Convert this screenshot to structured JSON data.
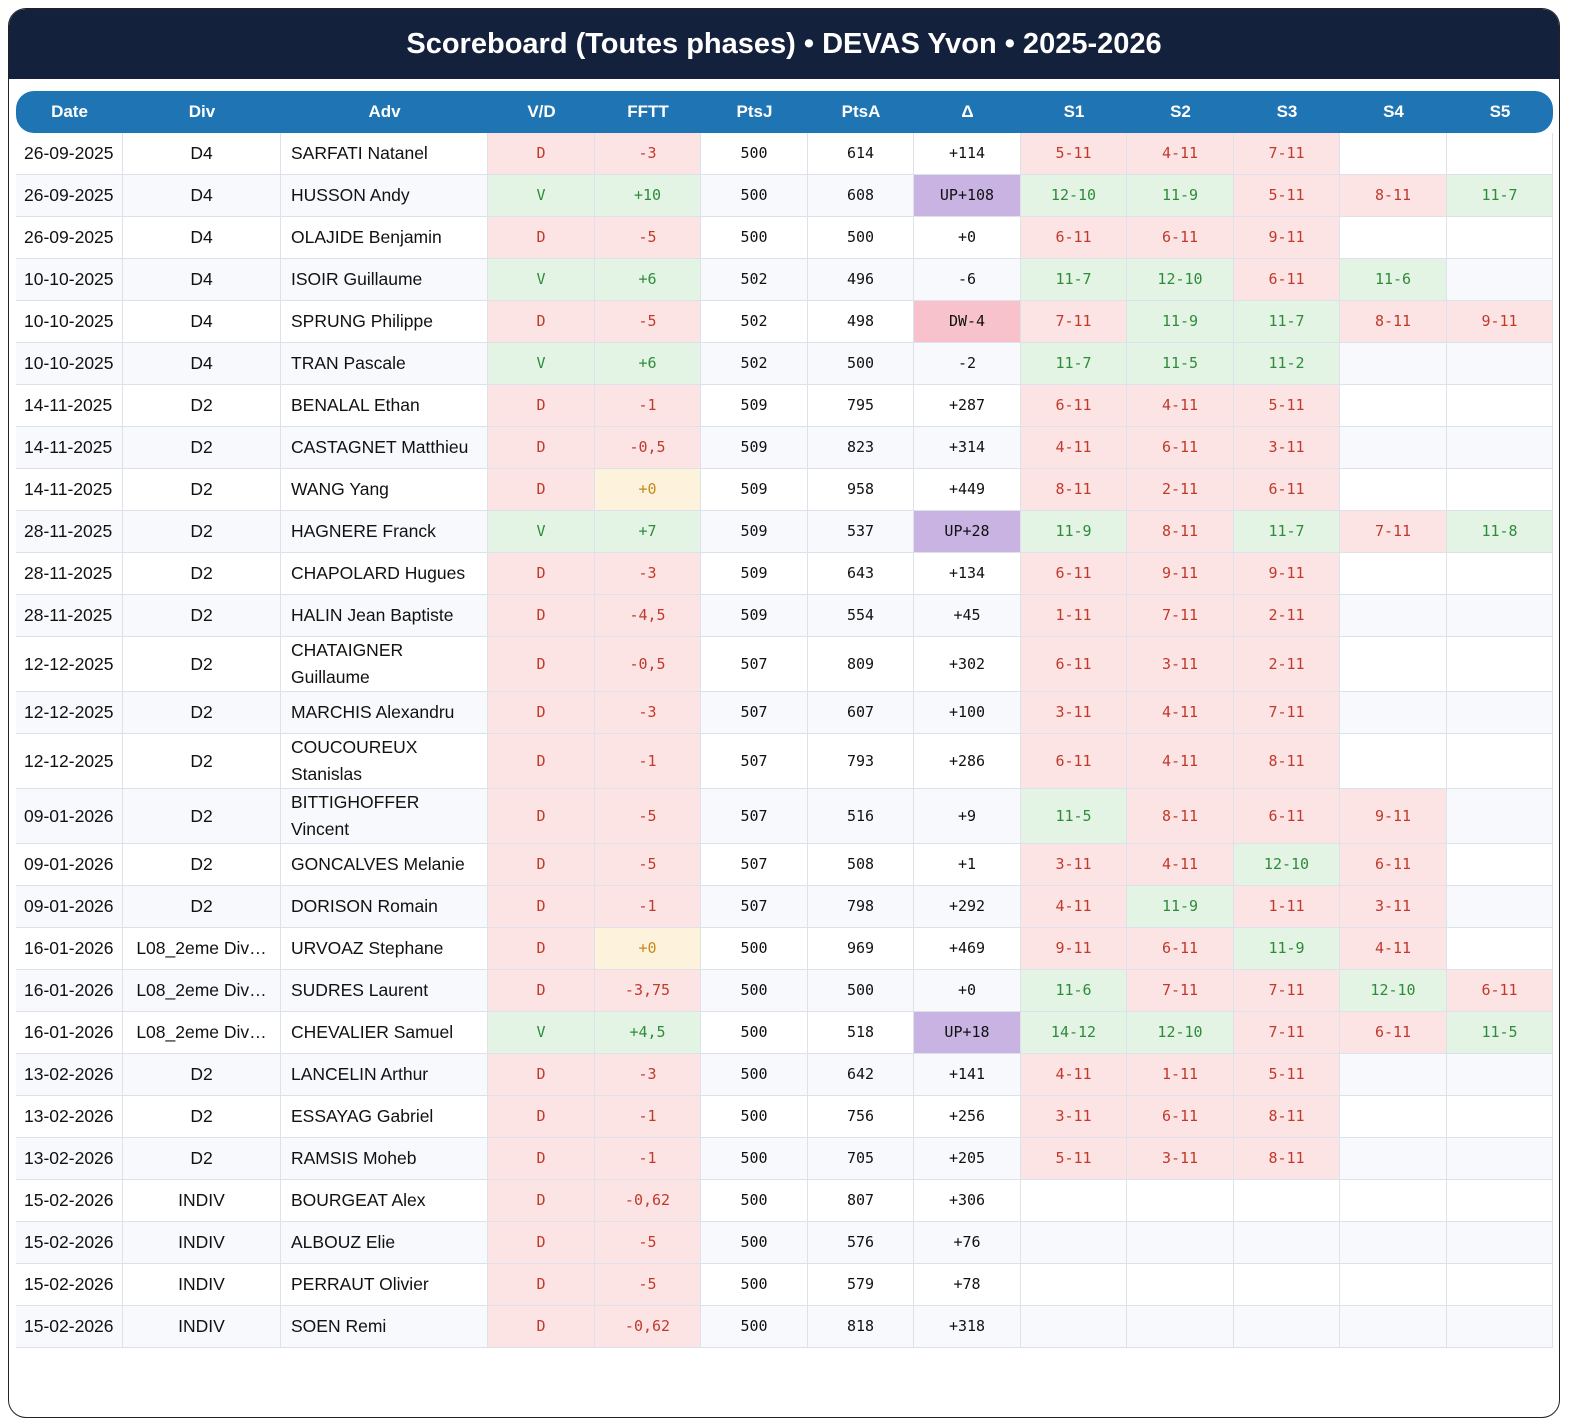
{
  "header": {
    "title": "Scoreboard (Toutes phases) • DEVAS Yvon • 2025-2026"
  },
  "table": {
    "columns": [
      "Date",
      "Div",
      "Adv",
      "V/D",
      "FFTT",
      "PtsJ",
      "PtsA",
      "Δ",
      "S1",
      "S2",
      "S3",
      "S4",
      "S5"
    ],
    "rows": [
      [
        "26-09-2025",
        "D4",
        "SARFATI Natanel",
        "D",
        "-3",
        "500",
        "614",
        "+114",
        "5-11",
        "4-11",
        "7-11"
      ],
      [
        "26-09-2025",
        "D4",
        "HUSSON Andy",
        "V",
        "+10",
        "500",
        "608",
        "UP+108",
        "12-10",
        "11-9",
        "5-11",
        "8-11",
        "11-7"
      ],
      [
        "26-09-2025",
        "D4",
        "OLAJIDE Benjamin",
        "D",
        "-5",
        "500",
        "500",
        "+0",
        "6-11",
        "6-11",
        "9-11"
      ],
      [
        "10-10-2025",
        "D4",
        "ISOIR Guillaume",
        "V",
        "+6",
        "502",
        "496",
        "-6",
        "11-7",
        "12-10",
        "6-11",
        "11-6"
      ],
      [
        "10-10-2025",
        "D4",
        "SPRUNG Philippe",
        "D",
        "-5",
        "502",
        "498",
        "DW-4",
        "7-11",
        "11-9",
        "11-7",
        "8-11",
        "9-11"
      ],
      [
        "10-10-2025",
        "D4",
        "TRAN Pascale",
        "V",
        "+6",
        "502",
        "500",
        "-2",
        "11-7",
        "11-5",
        "11-2"
      ],
      [
        "14-11-2025",
        "D2",
        "BENALAL Ethan",
        "D",
        "-1",
        "509",
        "795",
        "+287",
        "6-11",
        "4-11",
        "5-11"
      ],
      [
        "14-11-2025",
        "D2",
        "CASTAGNET Matthieu",
        "D",
        "-0,5",
        "509",
        "823",
        "+314",
        "4-11",
        "6-11",
        "3-11"
      ],
      [
        "14-11-2025",
        "D2",
        "WANG Yang",
        "D",
        "+0",
        "509",
        "958",
        "+449",
        "8-11",
        "2-11",
        "6-11"
      ],
      [
        "28-11-2025",
        "D2",
        "HAGNERE Franck",
        "V",
        "+7",
        "509",
        "537",
        "UP+28",
        "11-9",
        "8-11",
        "11-7",
        "7-11",
        "11-8"
      ],
      [
        "28-11-2025",
        "D2",
        "CHAPOLARD Hugues",
        "D",
        "-3",
        "509",
        "643",
        "+134",
        "6-11",
        "9-11",
        "9-11"
      ],
      [
        "28-11-2025",
        "D2",
        "HALIN Jean Baptiste",
        "D",
        "-4,5",
        "509",
        "554",
        "+45",
        "1-11",
        "7-11",
        "2-11"
      ],
      [
        "12-12-2025",
        "D2",
        "CHATAIGNER Guillaume",
        "D",
        "-0,5",
        "507",
        "809",
        "+302",
        "6-11",
        "3-11",
        "2-11"
      ],
      [
        "12-12-2025",
        "D2",
        "MARCHIS Alexandru",
        "D",
        "-3",
        "507",
        "607",
        "+100",
        "3-11",
        "4-11",
        "7-11"
      ],
      [
        "12-12-2025",
        "D2",
        "COUCOUREUX Stanislas",
        "D",
        "-1",
        "507",
        "793",
        "+286",
        "6-11",
        "4-11",
        "8-11"
      ],
      [
        "09-01-2026",
        "D2",
        "BITTIGHOFFER Vincent",
        "D",
        "-5",
        "507",
        "516",
        "+9",
        "11-5",
        "8-11",
        "6-11",
        "9-11"
      ],
      [
        "09-01-2026",
        "D2",
        "GONCALVES Melanie",
        "D",
        "-5",
        "507",
        "508",
        "+1",
        "3-11",
        "4-11",
        "12-10",
        "6-11"
      ],
      [
        "09-01-2026",
        "D2",
        "DORISON Romain",
        "D",
        "-1",
        "507",
        "798",
        "+292",
        "4-11",
        "11-9",
        "1-11",
        "3-11"
      ],
      [
        "16-01-2026",
        "L08_2eme Div…",
        "URVOAZ Stephane",
        "D",
        "+0",
        "500",
        "969",
        "+469",
        "9-11",
        "6-11",
        "11-9",
        "4-11"
      ],
      [
        "16-01-2026",
        "L08_2eme Div…",
        "SUDRES Laurent",
        "D",
        "-3,75",
        "500",
        "500",
        "+0",
        "11-6",
        "7-11",
        "7-11",
        "12-10",
        "6-11"
      ],
      [
        "16-01-2026",
        "L08_2eme Div…",
        "CHEVALIER Samuel",
        "V",
        "+4,5",
        "500",
        "518",
        "UP+18",
        "14-12",
        "12-10",
        "7-11",
        "6-11",
        "11-5"
      ],
      [
        "13-02-2026",
        "D2",
        "LANCELIN Arthur",
        "D",
        "-3",
        "500",
        "642",
        "+141",
        "4-11",
        "1-11",
        "5-11"
      ],
      [
        "13-02-2026",
        "D2",
        "ESSAYAG Gabriel",
        "D",
        "-1",
        "500",
        "756",
        "+256",
        "3-11",
        "6-11",
        "8-11"
      ],
      [
        "13-02-2026",
        "D2",
        "RAMSIS Moheb",
        "D",
        "-1",
        "500",
        "705",
        "+205",
        "5-11",
        "3-11",
        "8-11"
      ],
      [
        "15-02-2026",
        "INDIV",
        "BOURGEAT Alex",
        "D",
        "-0,62",
        "500",
        "807",
        "+306"
      ],
      [
        "15-02-2026",
        "INDIV",
        "ALBOUZ Elie",
        "D",
        "-5",
        "500",
        "576",
        "+76"
      ],
      [
        "15-02-2026",
        "INDIV",
        "PERRAUT Olivier",
        "D",
        "-5",
        "500",
        "579",
        "+78"
      ],
      [
        "15-02-2026",
        "INDIV",
        "SOEN Remi",
        "D",
        "-0,62",
        "500",
        "818",
        "+318"
      ]
    ]
  }
}
